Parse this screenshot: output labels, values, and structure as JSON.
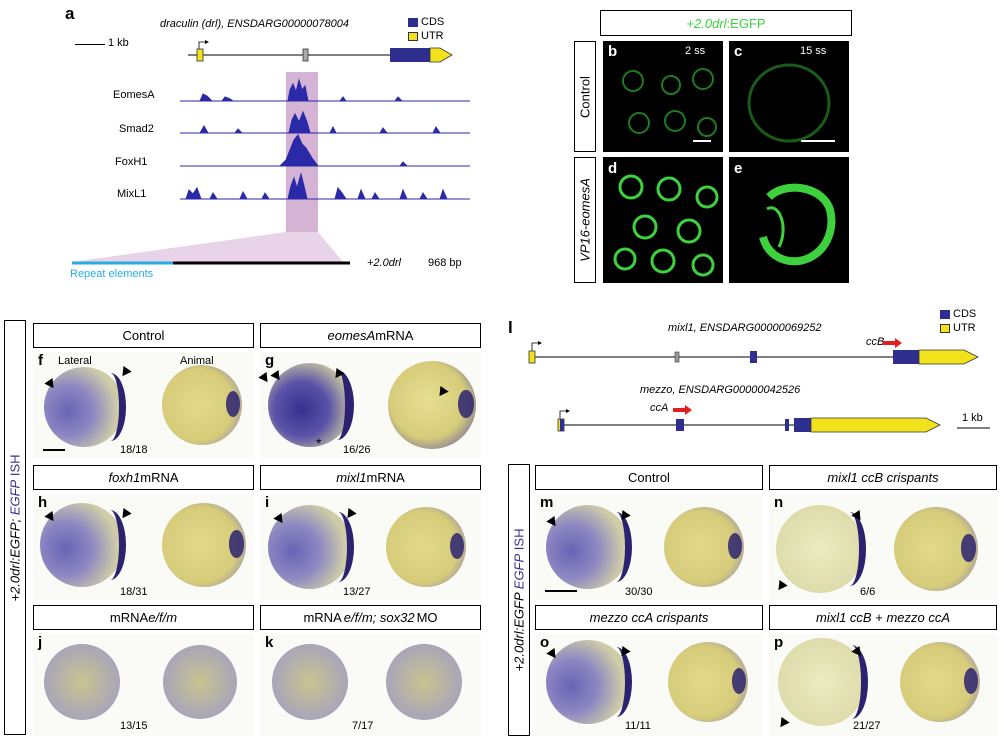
{
  "panel_labels": {
    "a": "a",
    "b": "b",
    "c": "c",
    "d": "d",
    "e": "e",
    "f": "f",
    "g": "g",
    "h": "h",
    "i": "i",
    "j": "j",
    "k": "k",
    "l": "l",
    "m": "m",
    "n": "n",
    "o": "o",
    "p": "p"
  },
  "panel_a": {
    "gene_title": "draculin (drl), ENSDARG00000078004",
    "scale": "1 kb",
    "legend_cds": "CDS",
    "legend_utr": "UTR",
    "tracks": [
      "EomesA",
      "Smad2",
      "FoxH1",
      "MixL1"
    ],
    "construct": "+2.0drl",
    "construct_size": "968 bp",
    "repeat_label": "Repeat elements"
  },
  "panel_be": {
    "title_prefix": "+2.0drl",
    "title_suffix": ":EGFP",
    "row_control": "Control",
    "row_vp16": "VP16-eomesA",
    "stage_2ss": "2 ss",
    "stage_15ss": "15 ss"
  },
  "panel_fk": {
    "side_label_prefix": "+2.0drl:EGFP; ",
    "side_label_egfp": "EGFP",
    "side_label_ish": " ISH",
    "headers": {
      "control": "Control",
      "eomes_gene": "eomesA",
      "eomes_rest": " mRNA",
      "foxh1_gene": "foxh1",
      "foxh1_rest": " mRNA",
      "mixl1_gene": "mixl1",
      "mixl1_rest": " mRNA",
      "efm_pre": "mRNA ",
      "efm_gene": "e/f/m",
      "sox_pre": "mRNA ",
      "sox_gene": "e/f/m; sox32",
      "sox_rest": " MO"
    },
    "view_lateral": "Lateral",
    "view_animal": "Animal",
    "counts": {
      "f": "18/18",
      "g": "16/26",
      "h": "18/31",
      "i": "13/27",
      "j": "13/15",
      "k": "7/17"
    },
    "asterisk": "*"
  },
  "panel_l": {
    "legend_cds": "CDS",
    "legend_utr": "UTR",
    "gene1": "mixl1, ENSDARG00000069252",
    "gene2": "mezzo, ENSDARG00000042526",
    "guide1": "ccB",
    "guide2": "ccA",
    "scale": "1 kb"
  },
  "panel_mp": {
    "side_label_prefix": "+2.0drl:EGFP ",
    "side_label_egfp": "EGFP",
    "side_label_ish": " ISH",
    "headers": {
      "control": "Control",
      "n": "mixl1 ccB crispants",
      "o": "mezzo ccA crispants",
      "p_a": "mixl1 ccB",
      "p_plus": " + ",
      "p_b": "mezzo ccA"
    },
    "counts": {
      "m": "30/30",
      "n": "6/6",
      "o": "11/11",
      "p": "21/27"
    }
  },
  "colors": {
    "cds": "#2e2e8f",
    "utr": "#f2e21c",
    "track": "#2a2aa8",
    "highlight": "#d8b8d8",
    "repeat": "#27aee0",
    "gfp": "#3dd23d",
    "guide": "#e02020"
  }
}
